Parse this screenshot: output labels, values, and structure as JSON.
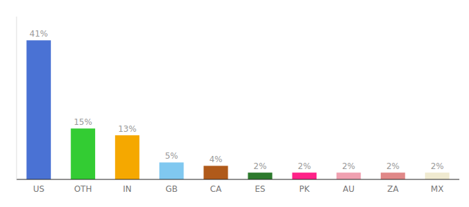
{
  "chart_data": {
    "type": "bar",
    "categories": [
      "US",
      "OTH",
      "IN",
      "GB",
      "CA",
      "ES",
      "PK",
      "AU",
      "ZA",
      "MX"
    ],
    "values": [
      41,
      15,
      13,
      5,
      4,
      2,
      2,
      2,
      2,
      2
    ],
    "value_labels": [
      "41%",
      "15%",
      "13%",
      "5%",
      "4%",
      "2%",
      "2%",
      "2%",
      "2%",
      "2%"
    ],
    "colors": [
      "#4a72d4",
      "#33cc33",
      "#f5a800",
      "#80c8f0",
      "#b05a1a",
      "#2d7a2d",
      "#ff2288",
      "#f0a0b0",
      "#e08888",
      "#f0ead0"
    ],
    "ylim": [
      0,
      48
    ],
    "grid": false,
    "data_labels": true,
    "tick_labels": "x"
  }
}
